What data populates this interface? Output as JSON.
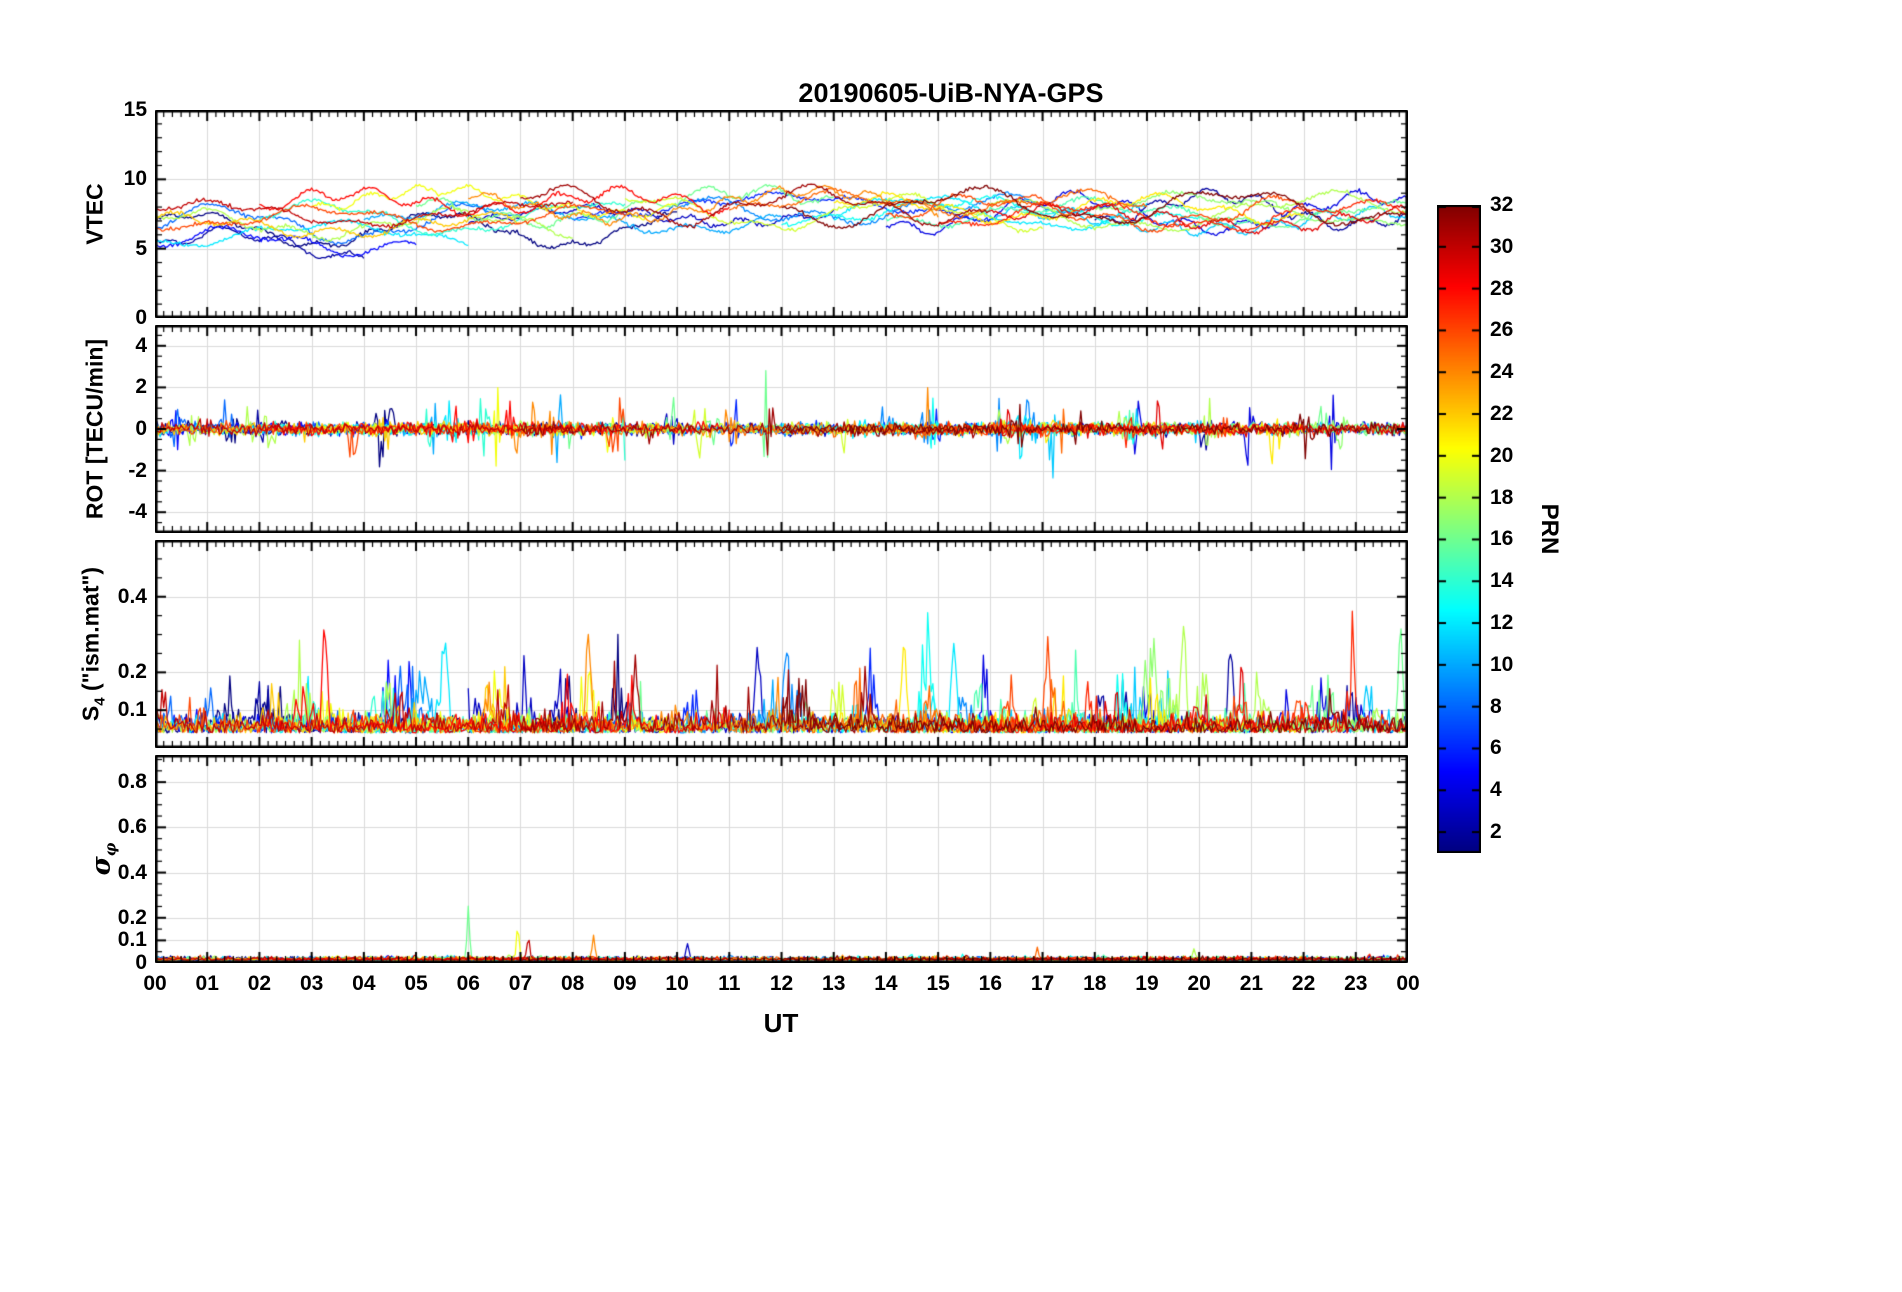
{
  "title": "20190605-UiB-NYA-GPS",
  "chart_data": {
    "type": "line",
    "x_axis": {
      "label": "UT",
      "range_hours": [
        0,
        24
      ],
      "tick_labels": [
        "00",
        "01",
        "02",
        "03",
        "04",
        "05",
        "06",
        "07",
        "08",
        "09",
        "10",
        "11",
        "12",
        "13",
        "14",
        "15",
        "16",
        "17",
        "18",
        "19",
        "20",
        "21",
        "22",
        "23",
        "00"
      ]
    },
    "colorbar": {
      "label": "PRN",
      "colormap": "jet",
      "range": [
        1,
        32
      ],
      "ticks": [
        2,
        4,
        6,
        8,
        10,
        12,
        14,
        16,
        18,
        20,
        22,
        24,
        26,
        28,
        30,
        32
      ]
    },
    "sample_step_hours": 0.033333,
    "arcs": [
      {
        "prn": 1,
        "t0": 0,
        "t1": 10,
        "base": 6.5
      },
      {
        "prn": 2,
        "t0": 0,
        "t1": 4,
        "base": 5.2
      },
      {
        "prn": 2,
        "t0": 18,
        "t1": 24,
        "base": 8.0
      },
      {
        "prn": 3,
        "t0": 6,
        "t1": 13,
        "base": 7.5
      },
      {
        "prn": 4,
        "t0": 14,
        "t1": 24,
        "base": 7.5
      },
      {
        "prn": 5,
        "t0": 0,
        "t1": 5,
        "base": 5.6
      },
      {
        "prn": 6,
        "t0": 8,
        "t1": 16,
        "base": 8.0
      },
      {
        "prn": 8,
        "t0": 0,
        "t1": 7,
        "base": 6.8
      },
      {
        "prn": 9,
        "t0": 10,
        "t1": 18,
        "base": 8.0
      },
      {
        "prn": 10,
        "t0": 4,
        "t1": 12,
        "base": 7.2
      },
      {
        "prn": 11,
        "t0": 16,
        "t1": 24,
        "base": 7.0
      },
      {
        "prn": 12,
        "t0": 0,
        "t1": 6,
        "base": 6.2
      },
      {
        "prn": 12,
        "t0": 13,
        "t1": 19,
        "base": 7.6
      },
      {
        "prn": 13,
        "t0": 12,
        "t1": 20,
        "base": 7.8
      },
      {
        "prn": 14,
        "t0": 2,
        "t1": 9,
        "base": 7.0
      },
      {
        "prn": 15,
        "t0": 14,
        "t1": 21,
        "base": 7.5
      },
      {
        "prn": 16,
        "t0": 5,
        "t1": 13,
        "base": 8.2
      },
      {
        "prn": 16,
        "t0": 20,
        "t1": 24,
        "base": 7.3
      },
      {
        "prn": 17,
        "t0": 18,
        "t1": 24,
        "base": 7.8
      },
      {
        "prn": 18,
        "t0": 0,
        "t1": 8,
        "base": 6.8
      },
      {
        "prn": 18,
        "t0": 16,
        "t1": 24,
        "base": 7.6
      },
      {
        "prn": 19,
        "t0": 9,
        "t1": 17,
        "base": 7.6
      },
      {
        "prn": 20,
        "t0": 3,
        "t1": 10,
        "base": 8.5
      },
      {
        "prn": 21,
        "t0": 13,
        "t1": 22,
        "base": 7.9
      },
      {
        "prn": 22,
        "t0": 0,
        "t1": 7,
        "base": 6.5
      },
      {
        "prn": 24,
        "t0": 6,
        "t1": 15,
        "base": 8.0
      },
      {
        "prn": 25,
        "t0": 11,
        "t1": 19,
        "base": 8.2
      },
      {
        "prn": 26,
        "t0": 0,
        "t1": 9,
        "base": 7.0
      },
      {
        "prn": 26,
        "t0": 14,
        "t1": 22,
        "base": 7.8
      },
      {
        "prn": 27,
        "t0": 15,
        "t1": 24,
        "base": 7.5
      },
      {
        "prn": 28,
        "t0": 2,
        "t1": 11,
        "base": 8.3
      },
      {
        "prn": 29,
        "t0": 16,
        "t1": 24,
        "base": 7.2
      },
      {
        "prn": 30,
        "t0": 0,
        "t1": 8,
        "base": 7.4
      },
      {
        "prn": 31,
        "t0": 7,
        "t1": 16,
        "base": 8.1
      },
      {
        "prn": 32,
        "t0": 12,
        "t1": 24,
        "base": 8.0
      }
    ],
    "panels": [
      {
        "id": "vtec",
        "ylabel": {
          "pre": "VTEC",
          "sub": "",
          "post": ""
        },
        "ylim": [
          0,
          15
        ],
        "yticks": [
          0,
          5,
          10,
          15
        ],
        "ytick_labels": [
          "0",
          "5",
          "10",
          "15"
        ],
        "yminor": 1,
        "wander": {
          "amp1": 0.85,
          "period1": 5.5,
          "amp2": 0.35,
          "period2": 1.4,
          "noise": 0.07
        },
        "clip": [
          4.3,
          10.2
        ]
      },
      {
        "id": "rot",
        "ylabel": {
          "pre": "ROT [TECU/min]",
          "sub": "",
          "post": ""
        },
        "ylim": [
          -5,
          5
        ],
        "yticks": [
          -4,
          -2,
          0,
          2,
          4
        ],
        "ytick_labels": [
          "-4",
          "-2",
          "0",
          "2",
          "4"
        ],
        "yminor": 0.5,
        "noise_sigma": 0.15,
        "burst_rate": 0.35,
        "burst_gain": 4,
        "burst_len": 0.1,
        "spike_width": 0.07,
        "clip": [
          -4.7,
          4.7
        ],
        "spikes": [
          {
            "prn": 20,
            "t": 6.55,
            "amp": 2.7
          },
          {
            "prn": 16,
            "t": 11.7,
            "amp": 2.9
          },
          {
            "prn": 10,
            "t": 5.35,
            "amp": 1.6
          },
          {
            "prn": 9,
            "t": 16.15,
            "amp": 2.1
          },
          {
            "prn": 4,
            "t": 22.55,
            "amp": 2.6
          },
          {
            "prn": 14,
            "t": 9.0,
            "amp": 1.5
          },
          {
            "prn": 24,
            "t": 7.6,
            "amp": 1.4
          },
          {
            "prn": 13,
            "t": 14.9,
            "amp": 1.8
          },
          {
            "prn": 11,
            "t": 17.2,
            "amp": 1.7
          }
        ]
      },
      {
        "id": "s4",
        "ylabel": {
          "pre": "S",
          "sub": "4",
          "post": " (\"ism.mat\")"
        },
        "ylim": [
          0,
          0.55
        ],
        "yticks": [
          0.1,
          0.2,
          0.4
        ],
        "ytick_labels": [
          "0.1",
          "0.2",
          "0.4"
        ],
        "yminor": 0.05,
        "base": 0.04,
        "noise": 0.022,
        "burst_rate": 0.45,
        "burst_gain": 2.8,
        "burst_len": 0.15,
        "spike_width": 0.1,
        "clip": [
          0.02,
          0.52
        ],
        "spikes": [
          {
            "prn": 28,
            "t": 3.25,
            "amp": 0.33
          },
          {
            "prn": 12,
            "t": 5.55,
            "amp": 0.28
          },
          {
            "prn": 24,
            "t": 8.3,
            "amp": 0.33
          },
          {
            "prn": 31,
            "t": 9.2,
            "amp": 0.2
          },
          {
            "prn": 3,
            "t": 11.55,
            "amp": 0.27
          },
          {
            "prn": 21,
            "t": 14.35,
            "amp": 0.31
          },
          {
            "prn": 12,
            "t": 15.3,
            "amp": 0.26
          },
          {
            "prn": 26,
            "t": 17.1,
            "amp": 0.25
          },
          {
            "prn": 18,
            "t": 19.7,
            "amp": 0.33
          },
          {
            "prn": 2,
            "t": 20.6,
            "amp": 0.27
          },
          {
            "prn": 25,
            "t": 23.3,
            "amp": 0.2
          },
          {
            "prn": 16,
            "t": 23.85,
            "amp": 0.3
          }
        ]
      },
      {
        "id": "sigma_phi",
        "ylabel": {
          "pre": "σ",
          "sub": "φ",
          "post": ""
        },
        "ylim": [
          0,
          0.92
        ],
        "yticks": [
          0,
          0.1,
          0.2,
          0.4,
          0.6,
          0.8
        ],
        "ytick_labels": [
          "0",
          "0.1",
          "0.2",
          "0.4",
          "0.6",
          "0.8"
        ],
        "yminor": 0.05,
        "base": 0.012,
        "noise": 0.007,
        "burst_rate": 0.3,
        "burst_gain": 1.8,
        "burst_len": 0.1,
        "spike_width": 0.06,
        "clip": [
          0.004,
          0.88
        ],
        "spikes": [
          {
            "prn": 16,
            "t": 6.0,
            "amp": 0.24
          },
          {
            "prn": 20,
            "t": 6.95,
            "amp": 0.17
          },
          {
            "prn": 30,
            "t": 7.15,
            "amp": 0.12
          },
          {
            "prn": 24,
            "t": 8.4,
            "amp": 0.12
          },
          {
            "prn": 3,
            "t": 10.2,
            "amp": 0.09
          },
          {
            "prn": 25,
            "t": 16.9,
            "amp": 0.06
          },
          {
            "prn": 18,
            "t": 19.9,
            "amp": 0.05
          }
        ]
      }
    ]
  }
}
